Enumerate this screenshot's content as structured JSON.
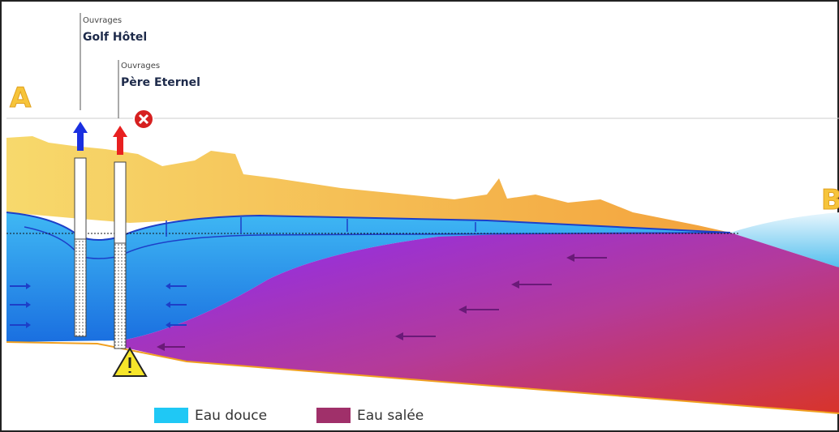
{
  "labels": {
    "section_start": "A",
    "section_end": "B"
  },
  "wells": [
    {
      "caption": "Ouvrages",
      "name": "Golf Hôtel"
    },
    {
      "caption": "Ouvrages",
      "name": "Père Eternel"
    }
  ],
  "legend": [
    {
      "label": "Eau douce"
    },
    {
      "label": "Eau salée"
    }
  ]
}
